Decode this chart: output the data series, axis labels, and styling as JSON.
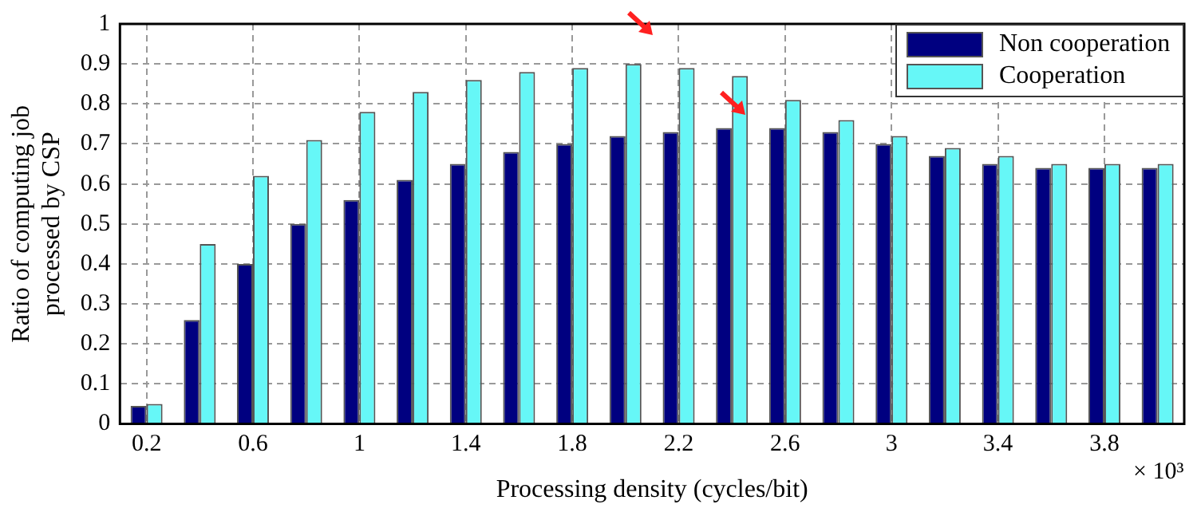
{
  "chart_data": {
    "type": "bar",
    "xlabel": "Processing density (cycles/bit)",
    "ylabel": "Ratio of computing job\nprocessed by CSP",
    "categories": [
      "0.2",
      null,
      "0.6",
      null,
      "1",
      null,
      "1.4",
      null,
      "1.8",
      null,
      "2.2",
      null,
      "2.6",
      null,
      "3",
      null,
      "3.4",
      null,
      "3.8",
      null
    ],
    "series": [
      {
        "name": "Non cooperation",
        "color": "#000080",
        "values": [
          0.045,
          0.26,
          0.4,
          0.5,
          0.56,
          0.61,
          0.65,
          0.68,
          0.7,
          0.72,
          0.73,
          0.74,
          0.74,
          0.73,
          0.7,
          0.67,
          0.65,
          0.64,
          0.64,
          0.64
        ]
      },
      {
        "name": "Cooperation",
        "color": "#66f7f7",
        "values": [
          0.05,
          0.45,
          0.62,
          0.71,
          0.78,
          0.83,
          0.86,
          0.88,
          0.89,
          0.9,
          0.89,
          0.87,
          0.81,
          0.76,
          0.72,
          0.69,
          0.67,
          0.65,
          0.65,
          0.65
        ]
      }
    ],
    "ylim": [
      0,
      1
    ],
    "yticks": [
      0,
      0.1,
      0.2,
      0.3,
      0.4,
      0.5,
      0.6,
      0.7,
      0.8,
      0.9,
      1
    ],
    "grid": true,
    "legend": "top right",
    "annotations": [
      "× 10³"
    ]
  }
}
